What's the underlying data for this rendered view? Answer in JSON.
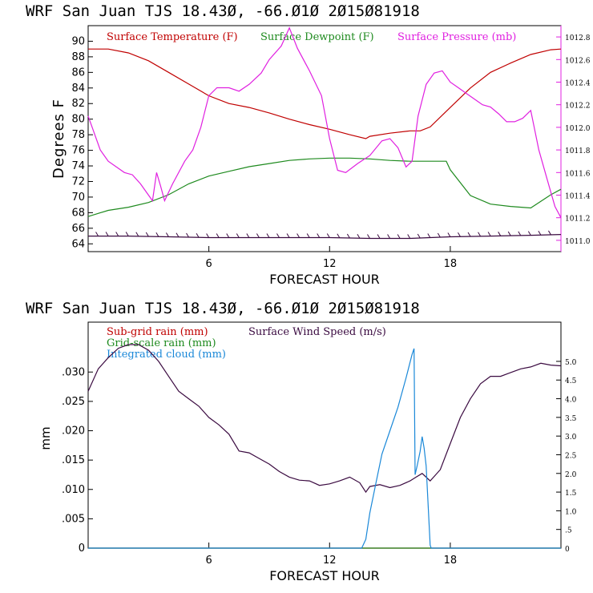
{
  "colors": {
    "temperature": "#c00000",
    "dewpoint": "#1e8a1e",
    "pressure": "#e020e0",
    "wind": "#3a0a40",
    "subgrid_rain": "#c00000",
    "grid_rain": "#1e8a1e",
    "cloud": "#1a88d8"
  },
  "chart_data": [
    {
      "type": "line",
      "title": "WRF  San Juan TJS  18.43Ø, -66.Ø1Ø  2Ø15Ø81918",
      "xlabel": "FORECAST HOUR",
      "ylabel": "Degrees F",
      "xlim": [
        0,
        23.5
      ],
      "ylim": [
        63,
        92
      ],
      "y2lim": [
        1010.9,
        1012.9
      ],
      "xticks": [
        "6",
        "12",
        "18"
      ],
      "xtick_values": [
        6,
        12,
        18
      ],
      "yticks": [
        "64",
        "66",
        "68",
        "70",
        "72",
        "74",
        "76",
        "78",
        "80",
        "82",
        "84",
        "86",
        "88",
        "90"
      ],
      "ytick_values": [
        64,
        66,
        68,
        70,
        72,
        74,
        76,
        78,
        80,
        82,
        84,
        86,
        88,
        90
      ],
      "y2ticks": [
        "1011.0",
        "1011.2",
        "1011.4",
        "1011.6",
        "1011.8",
        "1012.0",
        "1012.2",
        "1012.4",
        "1012.6",
        "1012.8"
      ],
      "y2tick_values": [
        1011.0,
        1011.2,
        1011.4,
        1011.6,
        1011.8,
        1012.0,
        1012.2,
        1012.4,
        1012.6,
        1012.8
      ],
      "legend": [
        "Surface Temperature (F)",
        "Surface Dewpoint (F)",
        "Surface Pressure (mb)"
      ],
      "series": [
        {
          "name": "Surface Temperature (F)",
          "axis": "left",
          "x": [
            0,
            1,
            2,
            3,
            4,
            5,
            6,
            7,
            8,
            9,
            10,
            11,
            12,
            13,
            13.8,
            14,
            15,
            16,
            16.5,
            17,
            18,
            19,
            20,
            21,
            22,
            23,
            23.5
          ],
          "y": [
            89,
            89,
            88.5,
            87.5,
            86,
            84.5,
            83,
            82,
            81.5,
            80.8,
            80,
            79.3,
            78.7,
            78,
            77.5,
            77.8,
            78.2,
            78.5,
            78.5,
            79,
            81.5,
            84,
            86,
            87.2,
            88.3,
            88.9,
            89
          ]
        },
        {
          "name": "Surface Dewpoint (F)",
          "axis": "left",
          "x": [
            0,
            1,
            2,
            3,
            4,
            5,
            6,
            7,
            8,
            9,
            10,
            11,
            12,
            13,
            14,
            15,
            16,
            17,
            17.8,
            18,
            19,
            20,
            21,
            22,
            23,
            23.5
          ],
          "y": [
            67.5,
            68.3,
            68.7,
            69.3,
            70.3,
            71.7,
            72.7,
            73.3,
            73.9,
            74.3,
            74.7,
            74.9,
            75,
            75,
            74.9,
            74.7,
            74.6,
            74.6,
            74.6,
            73.5,
            70.2,
            69.1,
            68.8,
            68.6,
            70.3,
            71
          ]
        },
        {
          "name": "Surface Pressure (mb)",
          "axis": "right",
          "x": [
            0,
            0.6,
            1,
            1.8,
            2.2,
            2.6,
            3.2,
            3.4,
            3.6,
            3.8,
            4.2,
            4.8,
            5.2,
            5.6,
            6,
            6.4,
            7,
            7.5,
            8,
            8.6,
            9,
            9.6,
            10,
            10.4,
            11,
            11.6,
            12,
            12.4,
            12.8,
            13.4,
            14,
            14.6,
            15,
            15.4,
            15.8,
            16.1,
            16.4,
            16.8,
            17.2,
            17.6,
            18,
            18.4,
            18.8,
            19.2,
            19.6,
            20,
            20.4,
            20.8,
            21.2,
            21.6,
            22,
            22.4,
            22.8,
            23.2,
            23.5
          ],
          "y": [
            1012.1,
            1011.8,
            1011.7,
            1011.6,
            1011.58,
            1011.5,
            1011.35,
            1011.6,
            1011.48,
            1011.35,
            1011.5,
            1011.7,
            1011.8,
            1012.0,
            1012.28,
            1012.35,
            1012.35,
            1012.32,
            1012.38,
            1012.48,
            1012.6,
            1012.72,
            1012.88,
            1012.7,
            1012.5,
            1012.28,
            1011.9,
            1011.62,
            1011.6,
            1011.68,
            1011.75,
            1011.88,
            1011.9,
            1011.82,
            1011.65,
            1011.7,
            1012.1,
            1012.38,
            1012.48,
            1012.5,
            1012.4,
            1012.35,
            1012.3,
            1012.25,
            1012.2,
            1012.18,
            1012.12,
            1012.05,
            1012.05,
            1012.08,
            1012.15,
            1011.8,
            1011.55,
            1011.3,
            1011.2
          ]
        },
        {
          "name": "",
          "axis": "left",
          "x": [
            0,
            2,
            4,
            6,
            8,
            10,
            12,
            14,
            16,
            18,
            20,
            22,
            23.5
          ],
          "y": [
            65,
            65,
            64.9,
            64.8,
            64.8,
            64.8,
            64.8,
            64.7,
            64.7,
            64.9,
            65,
            65.1,
            65.2
          ]
        }
      ]
    },
    {
      "type": "line",
      "title": "WRF  San Juan TJS  18.43Ø, -66.Ø1Ø  2Ø15Ø81918",
      "xlabel": "FORECAST HOUR",
      "ylabel": "mm",
      "xlim": [
        0,
        23.5
      ],
      "ylim": [
        0,
        0.0385
      ],
      "y2lim": [
        0,
        6.05
      ],
      "xticks": [
        "6",
        "12",
        "18"
      ],
      "xtick_values": [
        6,
        12,
        18
      ],
      "yticks": [
        "0",
        ".005",
        ".010",
        ".015",
        ".020",
        ".025",
        ".030"
      ],
      "ytick_values": [
        0,
        0.005,
        0.01,
        0.015,
        0.02,
        0.025,
        0.03
      ],
      "y2ticks": [
        "0",
        ".5",
        "1.0",
        "1.5",
        "2.0",
        "2.5",
        "3.0",
        "3.5",
        "4.0",
        "4.5",
        "5.0"
      ],
      "y2tick_values": [
        0,
        0.5,
        1.0,
        1.5,
        2.0,
        2.5,
        3.0,
        3.5,
        4.0,
        4.5,
        5.0
      ],
      "legend": [
        "Sub-grid rain (mm)",
        "Surface Wind Speed (m/s)",
        "Grid-scale rain (mm)",
        "Integrated cloud (mm)"
      ],
      "series": [
        {
          "name": "Surface Wind Speed (m/s)",
          "axis": "right",
          "x": [
            0,
            0.5,
            1,
            1.5,
            2,
            2.5,
            3,
            3.5,
            4,
            4.5,
            5,
            5.5,
            6,
            6.5,
            7,
            7.5,
            8,
            8.5,
            9,
            9.5,
            10,
            10.5,
            11,
            11.5,
            12,
            12.5,
            13,
            13.5,
            13.8,
            14,
            14.5,
            15,
            15.5,
            16,
            16.3,
            16.6,
            17,
            17.5,
            18,
            18.5,
            19,
            19.5,
            20,
            20.5,
            21,
            21.5,
            22,
            22.5,
            23,
            23.5
          ],
          "y": [
            4.2,
            4.8,
            5.1,
            5.35,
            5.45,
            5.45,
            5.3,
            5.0,
            4.6,
            4.2,
            4.0,
            3.8,
            3.5,
            3.3,
            3.05,
            2.6,
            2.55,
            2.4,
            2.25,
            2.05,
            1.9,
            1.82,
            1.8,
            1.68,
            1.72,
            1.8,
            1.9,
            1.75,
            1.5,
            1.65,
            1.7,
            1.62,
            1.68,
            1.8,
            1.9,
            2.0,
            1.8,
            2.1,
            2.8,
            3.5,
            4.0,
            4.4,
            4.6,
            4.6,
            4.7,
            4.8,
            4.85,
            4.95,
            4.9,
            4.88
          ]
        },
        {
          "name": "Sub-grid rain (mm)",
          "axis": "left",
          "x": [
            0,
            23.5
          ],
          "y": [
            0,
            0
          ]
        },
        {
          "name": "Grid-scale rain (mm)",
          "axis": "left",
          "x": [
            0,
            23.5
          ],
          "y": [
            0,
            0
          ]
        },
        {
          "name": "Integrated cloud (mm)",
          "axis": "left",
          "x": [
            0,
            13.6,
            13.8,
            14,
            14.3,
            14.6,
            15,
            15.4,
            15.8,
            16.1,
            16.2,
            16.25,
            16.35,
            16.5,
            16.6,
            16.7,
            16.8,
            17,
            17.05,
            23.5
          ],
          "y": [
            0,
            0,
            0.0015,
            0.006,
            0.011,
            0.016,
            0.02,
            0.024,
            0.029,
            0.033,
            0.034,
            0.0125,
            0.014,
            0.0165,
            0.019,
            0.017,
            0.014,
            0.0005,
            0,
            0
          ]
        }
      ]
    }
  ]
}
